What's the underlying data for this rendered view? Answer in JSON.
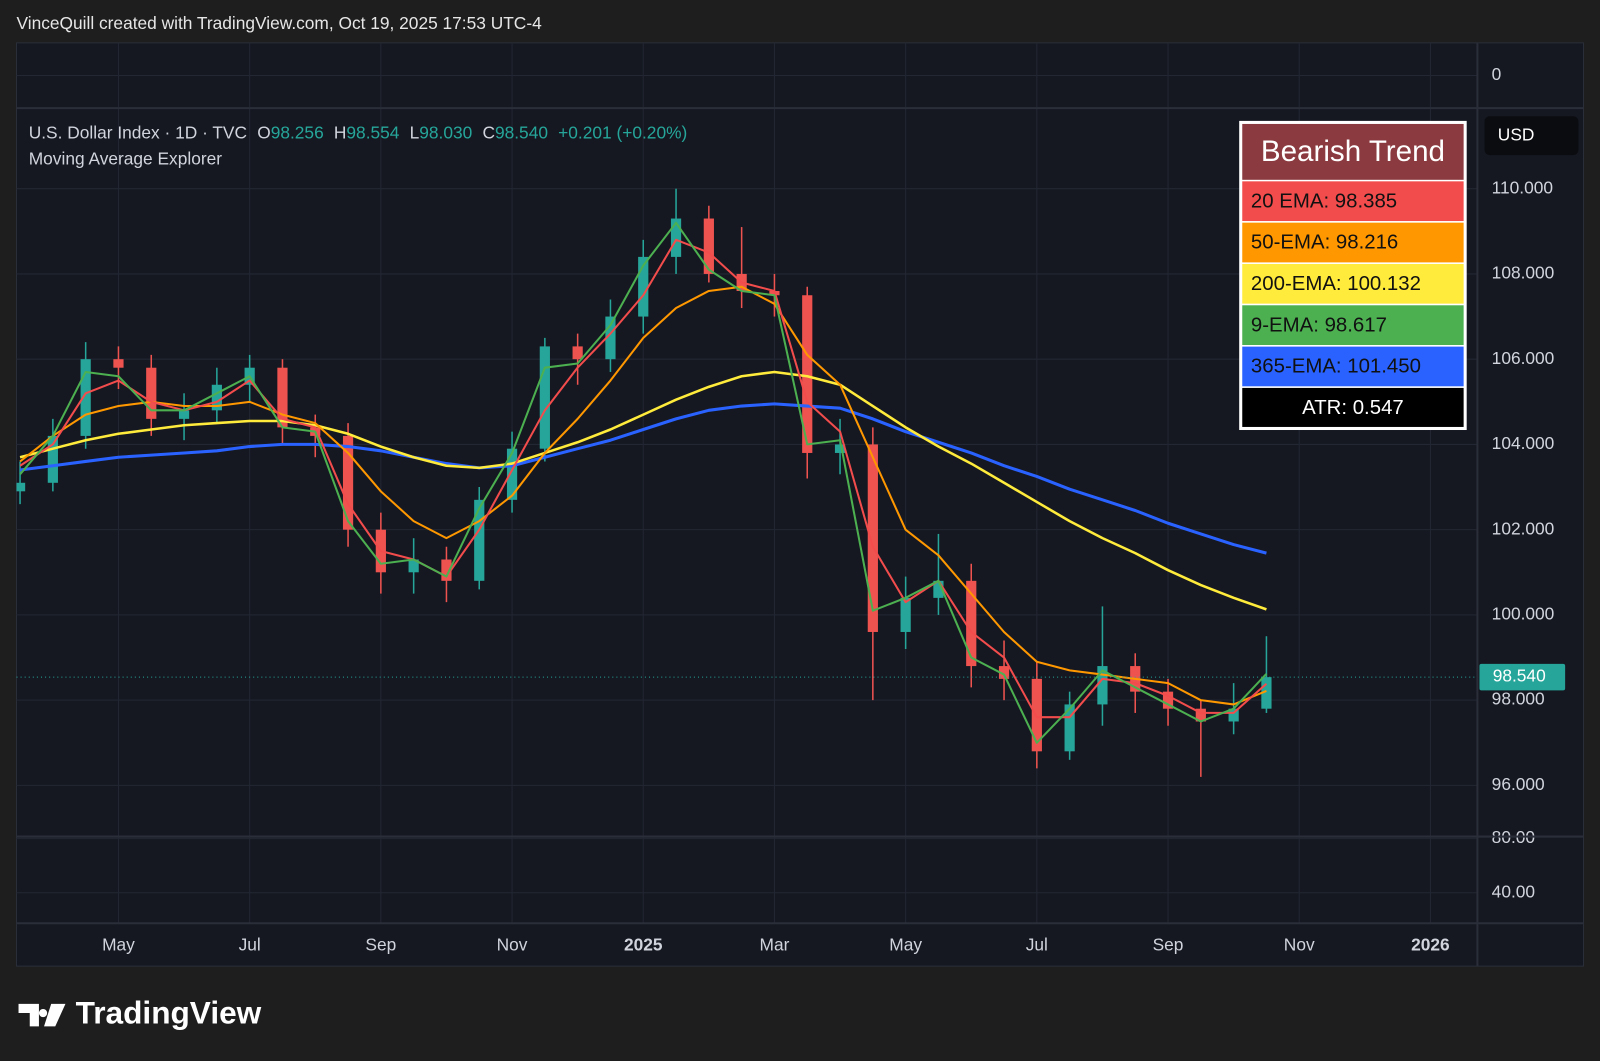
{
  "header": {
    "credit": "VinceQuill created with TradingView.com, Oct 19, 2025 17:53 UTC-4"
  },
  "legend": {
    "symbol": "U.S. Dollar Index · 1D · TVC",
    "open_label": "O",
    "open": "98.256",
    "high_label": "H",
    "high": "98.554",
    "low_label": "L",
    "low": "98.030",
    "close_label": "C",
    "close": "98.540",
    "change": "+0.201 (+0.20%)",
    "indicator": "Moving Average Explorer"
  },
  "panel": {
    "title": "Bearish Trend",
    "rows": [
      "20 EMA: 98.385",
      "50-EMA: 98.216",
      "200-EMA: 100.132",
      "9-EMA: 98.617",
      "365-EMA: 101.450",
      "ATR: 0.547"
    ],
    "colors": [
      "#f24c4c",
      "#ff9800",
      "#ffeb3b",
      "#4caf50",
      "#2962ff",
      "#000000"
    ]
  },
  "currency": "USD",
  "footer": {
    "brand": "TradingView"
  },
  "chart_data": [
    {
      "type": "candlestick",
      "grid": true,
      "up_color": "#26a69a",
      "down_color": "#ef5350",
      "categories": [
        null,
        null,
        null,
        "May",
        null,
        null,
        null,
        "Jul",
        null,
        null,
        null,
        "Sep",
        null,
        null,
        null,
        "Nov",
        null,
        null,
        null,
        "2025",
        null,
        null,
        null,
        "Mar",
        null,
        null,
        null,
        "May",
        null,
        null,
        null,
        "Jul",
        null,
        null,
        null,
        "Sep",
        null,
        null,
        null,
        "Nov",
        null,
        null,
        null,
        "2026"
      ],
      "open": [
        102.9,
        103.1,
        104.2,
        106.0,
        105.8,
        104.6,
        104.8,
        105.4,
        105.8,
        104.4,
        104.2,
        102.0,
        101.0,
        101.3,
        100.8,
        102.7,
        103.9,
        106.3,
        106.0,
        107.0,
        108.4,
        109.3,
        108.0,
        107.6,
        107.5,
        103.8,
        104.0,
        99.6,
        100.4,
        100.8,
        98.8,
        98.5,
        96.8,
        97.9,
        98.8,
        98.2,
        97.8,
        97.5,
        97.8,
        null,
        null,
        null,
        null,
        null
      ],
      "high": [
        103.6,
        104.6,
        106.4,
        106.3,
        106.1,
        105.2,
        105.8,
        106.1,
        106.0,
        104.7,
        104.5,
        102.4,
        101.8,
        101.6,
        103.0,
        104.3,
        106.5,
        106.6,
        107.4,
        108.8,
        110.0,
        109.6,
        109.1,
        108.0,
        107.7,
        104.6,
        104.4,
        100.9,
        101.9,
        101.2,
        99.4,
        98.9,
        98.2,
        100.2,
        99.1,
        98.5,
        98.0,
        98.4,
        99.5,
        null,
        null,
        null,
        null,
        null
      ],
      "low": [
        102.6,
        102.9,
        103.9,
        105.3,
        104.2,
        104.1,
        104.5,
        105.0,
        104.0,
        103.7,
        101.6,
        100.5,
        100.5,
        100.3,
        100.6,
        102.4,
        103.6,
        105.4,
        105.7,
        106.6,
        108.0,
        107.8,
        107.2,
        107.0,
        103.2,
        103.3,
        98.0,
        99.2,
        100.0,
        98.3,
        98.0,
        96.4,
        96.6,
        97.4,
        97.7,
        97.4,
        96.2,
        97.2,
        97.7,
        null,
        null,
        null,
        null,
        null
      ],
      "close": [
        103.1,
        104.2,
        106.0,
        105.8,
        104.6,
        104.8,
        105.4,
        105.8,
        104.4,
        104.2,
        102.0,
        101.0,
        101.3,
        100.8,
        102.7,
        103.9,
        106.3,
        106.0,
        107.0,
        108.4,
        109.3,
        108.0,
        107.6,
        107.5,
        103.8,
        104.0,
        99.6,
        100.4,
        100.8,
        98.8,
        98.5,
        96.8,
        97.9,
        98.8,
        98.2,
        97.8,
        97.5,
        97.8,
        98.54,
        null,
        null,
        null,
        null,
        null
      ],
      "series": [
        {
          "color": "#2962ff",
          "width": 3,
          "values": [
            103.4,
            103.5,
            103.6,
            103.7,
            103.75,
            103.8,
            103.85,
            103.95,
            104.0,
            104.0,
            103.95,
            103.85,
            103.7,
            103.55,
            103.45,
            103.5,
            103.7,
            103.9,
            104.1,
            104.35,
            104.6,
            104.8,
            104.9,
            104.95,
            104.9,
            104.85,
            104.6,
            104.3,
            104.05,
            103.8,
            103.5,
            103.25,
            102.95,
            102.7,
            102.45,
            102.15,
            101.9,
            101.65,
            101.45,
            null,
            null,
            null,
            null,
            null
          ]
        },
        {
          "color": "#ffeb3b",
          "width": 2.5,
          "values": [
            103.7,
            103.9,
            104.1,
            104.25,
            104.35,
            104.45,
            104.5,
            104.55,
            104.55,
            104.45,
            104.25,
            103.95,
            103.7,
            103.5,
            103.45,
            103.55,
            103.8,
            104.05,
            104.35,
            104.7,
            105.05,
            105.35,
            105.6,
            105.7,
            105.6,
            105.4,
            104.9,
            104.4,
            103.95,
            103.55,
            103.1,
            102.65,
            102.2,
            101.8,
            101.45,
            101.05,
            100.7,
            100.4,
            100.13,
            null,
            null,
            null,
            null,
            null
          ]
        },
        {
          "color": "#ff9800",
          "width": 2,
          "values": [
            103.6,
            104.2,
            104.7,
            104.9,
            105.0,
            104.9,
            104.9,
            105.0,
            104.7,
            104.5,
            103.8,
            102.9,
            102.2,
            101.8,
            102.2,
            102.8,
            103.8,
            104.6,
            105.5,
            106.5,
            107.2,
            107.6,
            107.7,
            107.3,
            106.1,
            105.4,
            103.7,
            102.0,
            101.4,
            100.5,
            99.6,
            98.9,
            98.7,
            98.6,
            98.5,
            98.4,
            98.0,
            97.9,
            98.216,
            null,
            null,
            null,
            null,
            null
          ]
        },
        {
          "color": "#f24c4c",
          "width": 2,
          "values": [
            103.5,
            104.0,
            105.2,
            105.5,
            105.0,
            104.8,
            105.0,
            105.5,
            104.6,
            104.4,
            102.6,
            101.5,
            101.3,
            100.9,
            102.0,
            103.4,
            104.8,
            105.8,
            106.6,
            107.5,
            108.8,
            108.5,
            107.8,
            107.6,
            105.0,
            104.3,
            101.6,
            100.3,
            100.8,
            99.6,
            99.0,
            97.6,
            97.6,
            98.5,
            98.4,
            98.1,
            97.7,
            97.7,
            98.385,
            null,
            null,
            null,
            null,
            null
          ]
        },
        {
          "color": "#4caf50",
          "width": 2,
          "values": [
            103.3,
            104.2,
            105.7,
            105.6,
            104.8,
            104.8,
            105.2,
            105.6,
            104.4,
            104.3,
            102.2,
            101.2,
            101.3,
            100.9,
            102.5,
            103.8,
            105.8,
            105.9,
            106.8,
            108.2,
            109.2,
            108.1,
            107.6,
            107.5,
            104.0,
            104.1,
            100.1,
            100.4,
            100.8,
            99.0,
            98.6,
            97.0,
            97.8,
            98.7,
            98.3,
            97.9,
            97.5,
            97.8,
            98.617,
            null,
            null,
            null,
            null,
            null
          ]
        }
      ],
      "last_price": {
        "value": 98.54,
        "label": "98.540"
      },
      "ylim": [
        94.8,
        111.89
      ],
      "yticks": [
        {
          "value": 96,
          "label": "96.000"
        },
        {
          "value": 98,
          "label": "98.000"
        },
        {
          "value": 100,
          "label": "100.000"
        },
        {
          "value": 102,
          "label": "102.000"
        },
        {
          "value": 104,
          "label": "104.000"
        },
        {
          "value": 106,
          "label": "106.000"
        },
        {
          "value": 108,
          "label": "108.000"
        },
        {
          "value": 110,
          "label": "110.000"
        }
      ]
    },
    {
      "type": "line",
      "ylim": [
        -1,
        1
      ],
      "yticks": [
        0
      ]
    },
    {
      "type": "line",
      "ylim": [
        17.4,
        81.5
      ],
      "yticks": [
        {
          "value": 80,
          "label": "80.00"
        },
        {
          "value": 40,
          "label": "40.00"
        }
      ]
    }
  ]
}
